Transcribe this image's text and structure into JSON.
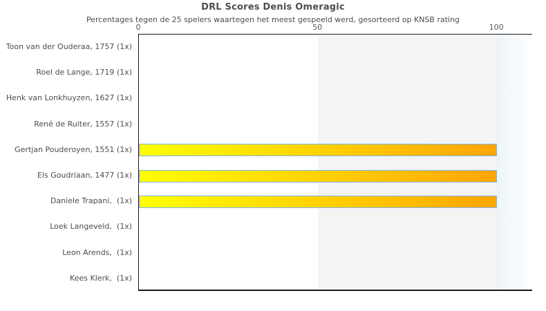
{
  "chart_data": {
    "type": "bar",
    "orientation": "horizontal",
    "title": "DRL Scores Denis Omeragic",
    "subtitle": "Percentages tegen de 25 spelers waartegen het meest gespeeld werd, gesorteerd op KNSB rating",
    "categories": [
      "Toon van der Ouderaa, 1757 (1x)",
      "Roel de Lange, 1719 (1x)",
      "Henk van Lonkhuyzen, 1627 (1x)",
      "René de Ruiter, 1557 (1x)",
      "Gertjan Pouderoyen, 1551 (1x)",
      "Els Goudriaan, 1477 (1x)",
      "Daniele Trapani,  (1x)",
      "Loek Langeveld,  (1x)",
      "Leon Arends,  (1x)",
      "Kees Klerk,  (1x)"
    ],
    "values": [
      0,
      0,
      0,
      0,
      100,
      100,
      100,
      0,
      0,
      0
    ],
    "xlabel": "",
    "ylabel": "",
    "xlim": [
      0,
      110
    ],
    "xticks": [
      0,
      50,
      100
    ],
    "axis_position": "top",
    "grid": false,
    "legend": "none",
    "plot_bands": [
      {
        "from": 50,
        "to": 100,
        "color": "#f4f4f4"
      },
      {
        "from": 100,
        "to": 110,
        "gradient": [
          "#edf4f9",
          "#ffffff"
        ]
      }
    ],
    "colors": {
      "bar_gradient_start": "#ffff00",
      "bar_gradient_end": "#ffa500",
      "bar_border": "#7cb5ec",
      "plot_border": "#1a1a1a",
      "band_fill": "#f4f4f4",
      "title_text": "#4d4d4d",
      "tick_text": "#595959",
      "category_text": "#4d4d4d",
      "background": "#ffffff"
    }
  }
}
